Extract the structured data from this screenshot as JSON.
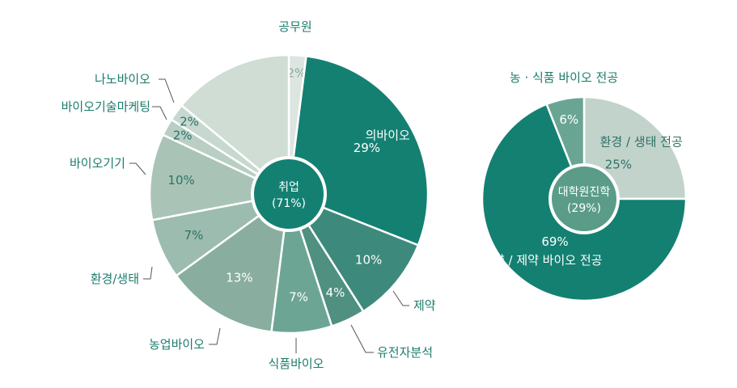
{
  "chart_data": [
    {
      "type": "pie",
      "center_label": "취업",
      "center_sublabel": "(71%)",
      "slices": [
        {
          "label": "공무원",
          "percent_label": "2%",
          "value": 2,
          "color": "#dde5e0",
          "text_color": "#8aa79c"
        },
        {
          "label": "의바이오",
          "percent_label": "29%",
          "value": 29,
          "color": "#148072",
          "text_color": "#ffffff"
        },
        {
          "label": "제약",
          "percent_label": "10%",
          "value": 10,
          "color": "#3d8a7d",
          "text_color": "#ffffff"
        },
        {
          "label": "유전자분석",
          "percent_label": "4%",
          "value": 4,
          "color": "#4f9080",
          "text_color": "#ffffff"
        },
        {
          "label": "식품바이오",
          "percent_label": "7%",
          "value": 7,
          "color": "#6da595",
          "text_color": "#ffffff"
        },
        {
          "label": "농업바이오",
          "percent_label": "13%",
          "value": 13,
          "color": "#89ae9f",
          "text_color": "#ffffff"
        },
        {
          "label": "환경/생태",
          "percent_label": "7%",
          "value": 7,
          "color": "#9bbcae",
          "text_color": "#2d7266"
        },
        {
          "label": "바이오기기",
          "percent_label": "10%",
          "value": 10,
          "color": "#a9c4b7",
          "text_color": "#2d7266"
        },
        {
          "label": "바이오기술마케팅",
          "percent_label": "2%",
          "value": 2,
          "color": "#b9cfc4",
          "text_color": "#2d7266"
        },
        {
          "label": "나노바이오",
          "percent_label": "2%",
          "value": 2,
          "color": "#c6d8cf",
          "text_color": "#2d7266"
        },
        {
          "label": "",
          "percent_label": "",
          "value": 14,
          "color": "#cfddd5",
          "text_color": "#2d7266"
        }
      ]
    },
    {
      "type": "pie",
      "center_label": "대학원진학",
      "center_sublabel": "(29%)",
      "slices": [
        {
          "label": "환경 / 생태 전공",
          "percent_label": "25%",
          "value": 25,
          "color": "#c2d3cb",
          "text_color": "#2d7266"
        },
        {
          "label": "의약 / 제약 바이오 전공",
          "percent_label": "69%",
          "value": 69,
          "color": "#148072",
          "text_color": "#ffffff"
        },
        {
          "label": "농 · 식품 바이오 전공",
          "percent_label": "6%",
          "value": 6,
          "color": "#6aa593",
          "text_color": "#ffffff"
        }
      ]
    }
  ]
}
